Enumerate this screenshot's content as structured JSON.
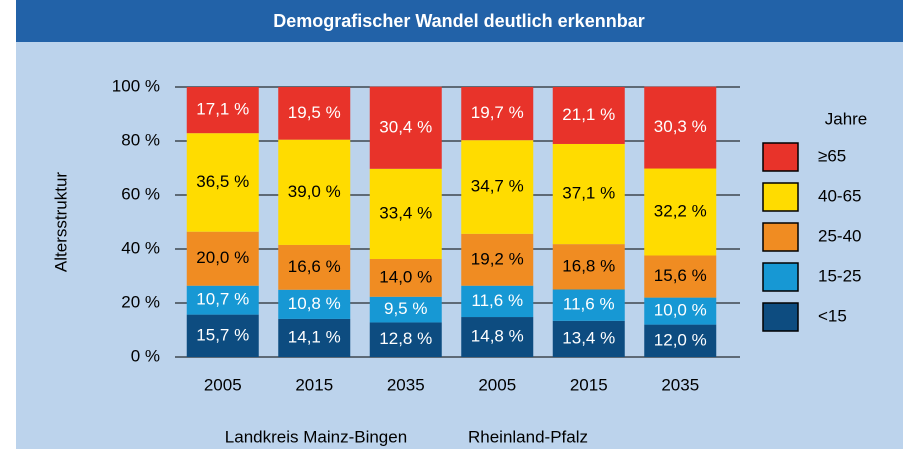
{
  "chart_data": {
    "type": "stacked_bar",
    "title": "Demografischer Wandel deutlich erkennbar",
    "y_label": "Altersstruktur",
    "legend_title": "Jahre",
    "legend": "right",
    "categories": [
      "2005",
      "2015",
      "2035",
      "2005",
      "2015",
      "2035"
    ],
    "group_labels": [
      "Landkreis Mainz-Bingen",
      "Rheinland-Pfalz"
    ],
    "ylim": [
      0,
      100
    ],
    "yticks": [
      {
        "value": 0,
        "label": "0 %"
      },
      {
        "value": 20,
        "label": "20 %"
      },
      {
        "value": 40,
        "label": "40 %"
      },
      {
        "value": 60,
        "label": "60 %"
      },
      {
        "value": 80,
        "label": "80 %"
      },
      {
        "value": 100,
        "label": "100 %"
      }
    ],
    "grid": true,
    "series": [
      {
        "name": "<15",
        "color": "#0d4c80",
        "label_color": "#ffffff",
        "values": [
          15.7,
          14.1,
          12.8,
          14.8,
          13.4,
          12.0
        ],
        "value_labels": [
          "15,7 %",
          "14,1 %",
          "12,8 %",
          "14,8 %",
          "13,4 %",
          "12,0 %"
        ]
      },
      {
        "name": "15-25",
        "color": "#1798d4",
        "label_color": "#ffffff",
        "values": [
          10.7,
          10.8,
          9.5,
          11.6,
          11.6,
          10.0
        ],
        "value_labels": [
          "10,7 %",
          "10,8 %",
          "9,5 %",
          "11,6 %",
          "11,6 %",
          "10,0 %"
        ]
      },
      {
        "name": "25-40",
        "color": "#f08c22",
        "label_color": "#000000",
        "values": [
          20.0,
          16.6,
          14.0,
          19.2,
          16.8,
          15.6
        ],
        "value_labels": [
          "20,0 %",
          "16,6 %",
          "14,0 %",
          "19,2 %",
          "16,8 %",
          "15,6 %"
        ]
      },
      {
        "name": "40-65",
        "color": "#ffdc00",
        "label_color": "#000000",
        "values": [
          36.5,
          39.0,
          33.4,
          34.7,
          37.1,
          32.2
        ],
        "value_labels": [
          "36,5 %",
          "39,0 %",
          "33,4 %",
          "34,7 %",
          "37,1 %",
          "32,2 %"
        ]
      },
      {
        "name": "≥65",
        "color": "#e8332a",
        "label_color": "#ffffff",
        "values": [
          17.1,
          19.5,
          30.4,
          19.7,
          21.1,
          30.3
        ],
        "value_labels": [
          "17,1 %",
          "19,5 %",
          "30,4 %",
          "19,7 %",
          "21,1 %",
          "30,3 %"
        ]
      }
    ]
  }
}
